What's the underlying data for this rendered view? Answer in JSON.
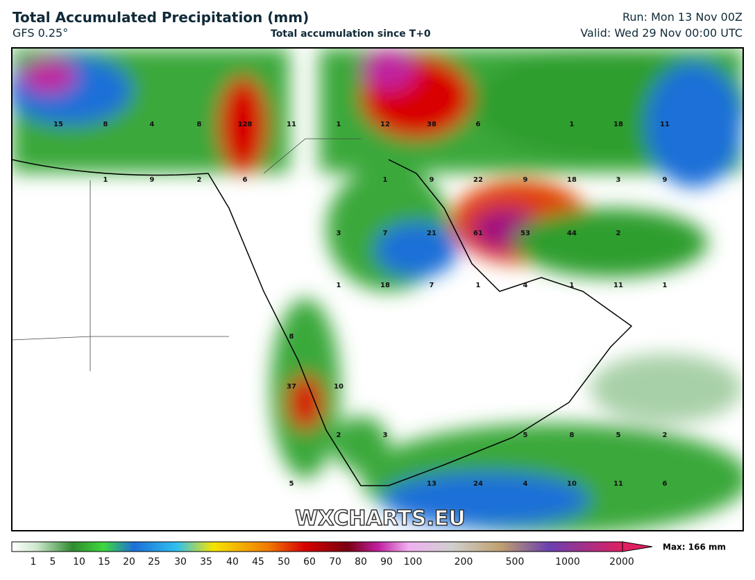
{
  "header": {
    "title": "Total Accumulated Precipitation (mm)",
    "model": "GFS 0.25°",
    "subtitle": "Total accumulation since T+0",
    "run": "Run: Mon 13 Nov 00Z",
    "valid": "Valid: Wed 29 Nov 00:00 UTC"
  },
  "map": {
    "value_labels": [
      15,
      8,
      4,
      8,
      128,
      11,
      1,
      12,
      38,
      6,
      1,
      18,
      11,
      1,
      9,
      2,
      6,
      1,
      9,
      22,
      9,
      18,
      3,
      9,
      3,
      7,
      21,
      61,
      53,
      44,
      2,
      1,
      18,
      7,
      1,
      4,
      1,
      11,
      1,
      8,
      37,
      10,
      2,
      3,
      5,
      8,
      5,
      2,
      5,
      13,
      24,
      4,
      10,
      11,
      6
    ],
    "watermark": "WXCHARTS.EU"
  },
  "legend": {
    "ticks": [
      1,
      5,
      10,
      15,
      20,
      25,
      30,
      35,
      40,
      45,
      50,
      60,
      70,
      80,
      90,
      100,
      200,
      500,
      1000,
      2000
    ],
    "max": "Max: 166 mm"
  }
}
